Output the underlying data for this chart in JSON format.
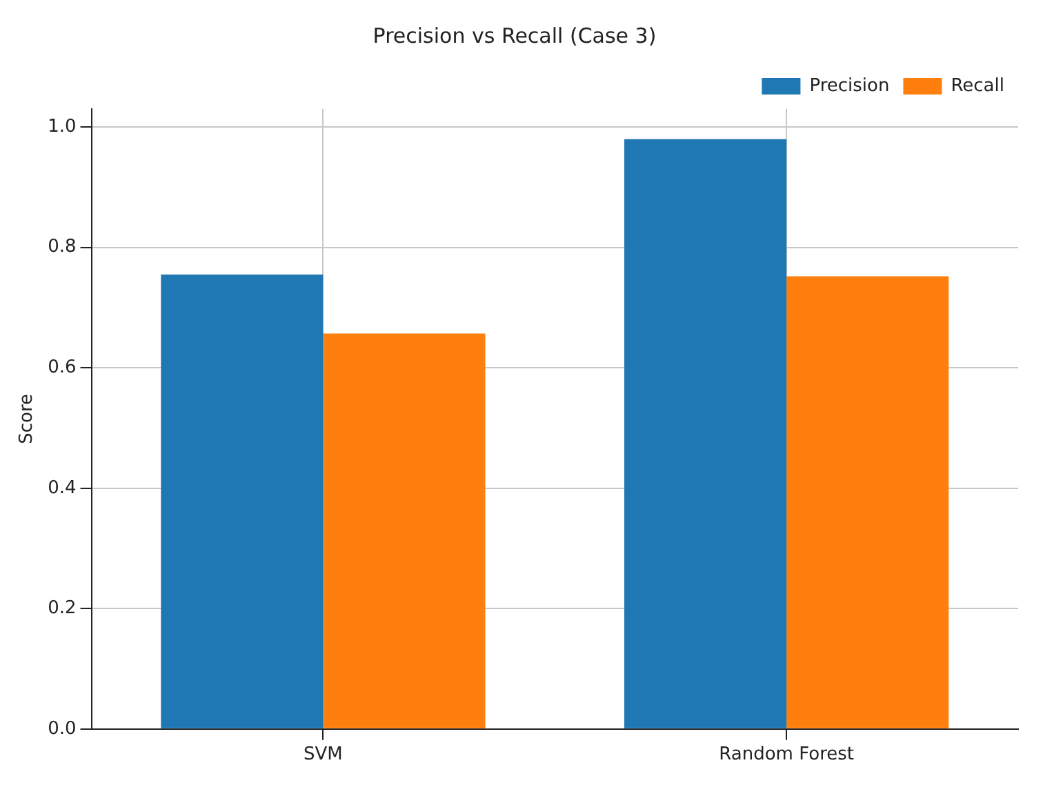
{
  "chart_data": {
    "type": "bar",
    "title": "Precision vs Recall (Case 3)",
    "ylabel": "Score",
    "categories": [
      "SVM",
      "Random Forest"
    ],
    "series": [
      {
        "name": "Precision",
        "color": "#1f77b4",
        "values": [
          0.755,
          0.98
        ]
      },
      {
        "name": "Recall",
        "color": "#ff7f0e",
        "values": [
          0.657,
          0.752
        ]
      }
    ],
    "ylim": [
      0,
      1.03
    ],
    "yticks": [
      {
        "value": 0,
        "label": "0.0"
      },
      {
        "value": 0.2,
        "label": "0.2"
      },
      {
        "value": 0.4,
        "label": "0.4"
      },
      {
        "value": 0.6,
        "label": "0.6"
      },
      {
        "value": 0.8,
        "label": "0.8"
      },
      {
        "value": 1,
        "label": "1.0"
      }
    ],
    "grid": true,
    "legend": "top right"
  }
}
